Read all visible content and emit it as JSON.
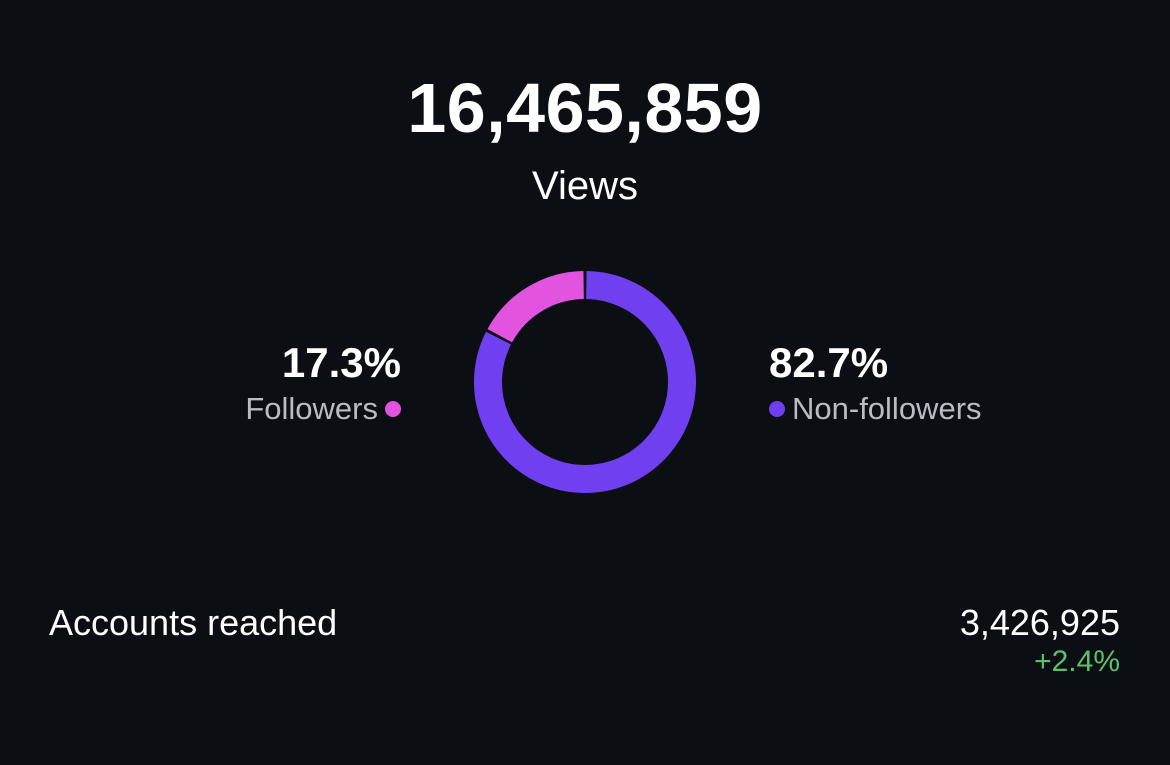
{
  "summary": {
    "total": "16,465,859",
    "total_label": "Views"
  },
  "breakdown": {
    "followers": {
      "percent_text": "17.3%",
      "label": "Followers",
      "share": 0.173,
      "color": "#e253e0"
    },
    "non_followers": {
      "percent_text": "82.7%",
      "label": "Non-followers",
      "share": 0.827,
      "color": "#7040f0"
    }
  },
  "accounts_reached": {
    "label": "Accounts reached",
    "value": "3,426,925",
    "change": "+2.4%",
    "change_color": "#5bc06a"
  }
}
